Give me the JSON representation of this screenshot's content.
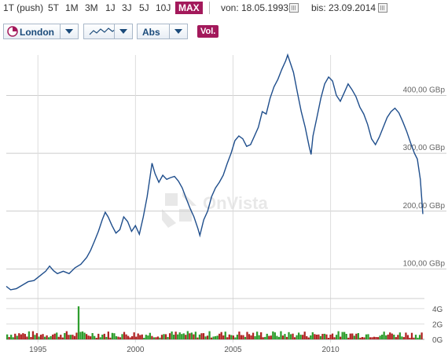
{
  "toolbar": {
    "ranges": [
      "1T (push)",
      "5T",
      "1M",
      "3M",
      "1J",
      "3J",
      "5J",
      "10J",
      "MAX"
    ],
    "active_range": "MAX",
    "von_label": "von:",
    "von_value": "18.05.1993",
    "bis_label": "bis:",
    "bis_value": "23.09.2014"
  },
  "controls": {
    "exchange": "London",
    "chart_style_icon": "line-chart-icon",
    "scale": "Abs",
    "volume_button": "Vol."
  },
  "watermark": "OnVista",
  "chart_data": [
    {
      "type": "line",
      "x_ticks": [
        "1995",
        "2000",
        "2005",
        "2010"
      ],
      "y_ticks": [
        "100,00 GBp",
        "200,00 GBp",
        "300,00 GBp",
        "400,00 GBp"
      ],
      "x_range": [
        1993.38,
        2014.73
      ],
      "ylim": [
        0,
        470
      ],
      "grid": true,
      "series": [
        {
          "color": "#1f4e8c",
          "points": [
            [
              1993.38,
              70
            ],
            [
              1993.6,
              64
            ],
            [
              1993.9,
              66
            ],
            [
              1994.2,
              72
            ],
            [
              1994.5,
              78
            ],
            [
              1994.8,
              80
            ],
            [
              1995.1,
              88
            ],
            [
              1995.4,
              96
            ],
            [
              1995.6,
              105
            ],
            [
              1995.8,
              97
            ],
            [
              1996.0,
              92
            ],
            [
              1996.3,
              96
            ],
            [
              1996.6,
              92
            ],
            [
              1996.9,
              102
            ],
            [
              1997.2,
              108
            ],
            [
              1997.5,
              120
            ],
            [
              1997.7,
              132
            ],
            [
              1997.9,
              148
            ],
            [
              1998.1,
              165
            ],
            [
              1998.3,
              185
            ],
            [
              1998.45,
              198
            ],
            [
              1998.6,
              190
            ],
            [
              1998.8,
              175
            ],
            [
              1999.0,
              162
            ],
            [
              1999.2,
              168
            ],
            [
              1999.4,
              190
            ],
            [
              1999.6,
              182
            ],
            [
              1999.8,
              165
            ],
            [
              2000.0,
              175
            ],
            [
              2000.2,
              160
            ],
            [
              2000.4,
              190
            ],
            [
              2000.6,
              225
            ],
            [
              2000.75,
              260
            ],
            [
              2000.85,
              283
            ],
            [
              2001.0,
              265
            ],
            [
              2001.2,
              250
            ],
            [
              2001.4,
              262
            ],
            [
              2001.6,
              255
            ],
            [
              2001.8,
              258
            ],
            [
              2002.0,
              260
            ],
            [
              2002.2,
              252
            ],
            [
              2002.4,
              240
            ],
            [
              2002.6,
              222
            ],
            [
              2002.8,
              205
            ],
            [
              2003.0,
              190
            ],
            [
              2003.2,
              170
            ],
            [
              2003.3,
              158
            ],
            [
              2003.5,
              185
            ],
            [
              2003.7,
              200
            ],
            [
              2003.9,
              225
            ],
            [
              2004.1,
              240
            ],
            [
              2004.3,
              250
            ],
            [
              2004.5,
              262
            ],
            [
              2004.7,
              282
            ],
            [
              2004.9,
              300
            ],
            [
              2005.1,
              322
            ],
            [
              2005.3,
              330
            ],
            [
              2005.5,
              325
            ],
            [
              2005.7,
              312
            ],
            [
              2005.9,
              315
            ],
            [
              2006.1,
              330
            ],
            [
              2006.3,
              345
            ],
            [
              2006.5,
              372
            ],
            [
              2006.7,
              368
            ],
            [
              2006.9,
              395
            ],
            [
              2007.1,
              415
            ],
            [
              2007.3,
              428
            ],
            [
              2007.5,
              445
            ],
            [
              2007.7,
              460
            ],
            [
              2007.8,
              470
            ],
            [
              2007.95,
              455
            ],
            [
              2008.1,
              440
            ],
            [
              2008.3,
              405
            ],
            [
              2008.5,
              372
            ],
            [
              2008.7,
              345
            ],
            [
              2008.9,
              312
            ],
            [
              2009.0,
              298
            ],
            [
              2009.1,
              330
            ],
            [
              2009.3,
              362
            ],
            [
              2009.5,
              395
            ],
            [
              2009.7,
              420
            ],
            [
              2009.9,
              432
            ],
            [
              2010.1,
              425
            ],
            [
              2010.3,
              400
            ],
            [
              2010.5,
              390
            ],
            [
              2010.7,
              405
            ],
            [
              2010.9,
              420
            ],
            [
              2011.1,
              410
            ],
            [
              2011.3,
              398
            ],
            [
              2011.5,
              380
            ],
            [
              2011.7,
              368
            ],
            [
              2011.9,
              350
            ],
            [
              2012.1,
              325
            ],
            [
              2012.3,
              315
            ],
            [
              2012.5,
              328
            ],
            [
              2012.7,
              345
            ],
            [
              2012.9,
              362
            ],
            [
              2013.1,
              372
            ],
            [
              2013.3,
              378
            ],
            [
              2013.5,
              370
            ],
            [
              2013.7,
              355
            ],
            [
              2013.9,
              338
            ],
            [
              2014.1,
              318
            ],
            [
              2014.3,
              300
            ],
            [
              2014.45,
              290
            ],
            [
              2014.6,
              255
            ],
            [
              2014.73,
              195
            ]
          ]
        }
      ]
    },
    {
      "type": "bar",
      "y_ticks": [
        "4G",
        "2G",
        "0G"
      ],
      "ylim": [
        0,
        4.9
      ],
      "x_range": [
        1993.38,
        2014.73
      ],
      "up_color": "#2e9e2e",
      "down_color": "#b02323",
      "spike": {
        "x": 1997.05,
        "value": 4.3
      },
      "bar_count": 210
    }
  ]
}
